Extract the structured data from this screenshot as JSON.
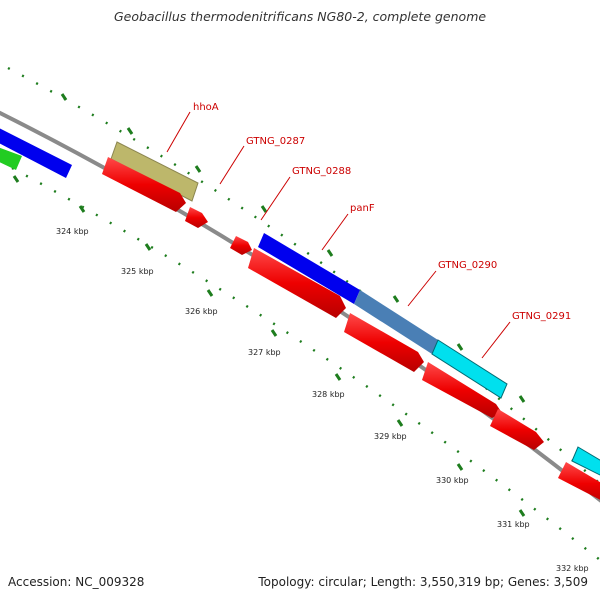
{
  "title": "Geobacillus thermodenitrificans NG80-2, complete genome",
  "footer": {
    "accession": "Accession: NC_009328",
    "summary": "Topology: circular; Length: 3,550,319 bp; Genes: 3,509"
  },
  "colors": {
    "backbone": "#808080",
    "tick": "#1e7d1e",
    "label": "#cc0000",
    "red_feature": "#ff0000",
    "blue_feature": "#0000ee",
    "steel_feature": "#4a7fb5",
    "cyan_feature": "#00e0ee",
    "khaki_feature": "#bdb76b",
    "green_feature": "#22cc22"
  },
  "scale_labels": [
    "324 kbp",
    "325 kbp",
    "326 kbp",
    "327 kbp",
    "328 kbp",
    "329 kbp",
    "330 kbp",
    "331 kbp",
    "332 kbp"
  ],
  "gene_labels": [
    "hhoA",
    "GTNG_0287",
    "GTNG_0288",
    "panF",
    "GTNG_0290",
    "GTNG_0291"
  ]
}
